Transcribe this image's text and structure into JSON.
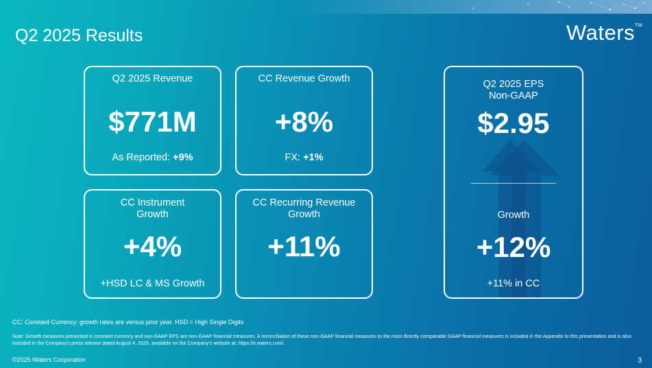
{
  "slide": {
    "title": "Q2 2025 Results",
    "logo": "Waters",
    "logo_tm": "TM",
    "page_number": "3",
    "copyright": "©2025 Waters Corporation"
  },
  "cards": {
    "revenue": {
      "label": "Q2 2025 Revenue",
      "value": "$771M",
      "sub_prefix": "As Reported: ",
      "sub_value": "+9%"
    },
    "cc_revenue": {
      "label": "CC Revenue Growth",
      "value": "+8%",
      "sub_prefix": "FX: ",
      "sub_value": "+1%"
    },
    "cc_instrument": {
      "label_line1": "CC Instrument",
      "label_line2": "Growth",
      "value": "+4%",
      "sub": "+HSD LC & MS Growth"
    },
    "cc_recurring": {
      "label_line1": "CC Recurring Revenue",
      "label_line2": "Growth",
      "value": "+11%"
    },
    "eps": {
      "label_line1": "Q2 2025 EPS",
      "label_line2": "Non-GAAP",
      "value": "$2.95",
      "growth_label": "Growth",
      "growth_value": "+12%",
      "growth_sub": "+11% in CC"
    }
  },
  "footnotes": {
    "definitions": "CC: Constant Currency; growth rates are versus prior year. HSD = High Single Digits",
    "note": "Note: Growth measures presented in constant currency and non-GAAP EPS are non-GAAP financial measures. A reconciliation of these non-GAAP financial measures to the most directly comparable GAAP financial measures is included in the Appendix to this presentation and is also included in the Company's press release dated August 4, 2025, available on the Company's website at: https://ir.waters.com/."
  },
  "colors": {
    "background_start": "#0bb9c0",
    "background_end": "#0a5e9c",
    "arrow_dark": "#0d4f86",
    "text": "#ffffff"
  }
}
